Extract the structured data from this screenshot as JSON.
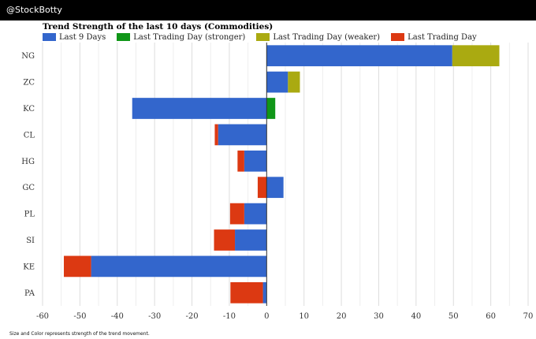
{
  "header": {
    "handle": "@StockBotty"
  },
  "colors": {
    "last9": "#3366cc",
    "stronger": "#109618",
    "weaker": "#aaaa11",
    "last": "#dc3912",
    "topbar": "#000000",
    "grid": "#dddddd"
  },
  "footnote": "Size and Color represents strength of the trend movement.",
  "chart_data": {
    "type": "bar",
    "orientation": "horizontal",
    "stacked": true,
    "title": "Trend Strength of the last 10 days (Commodities)",
    "legend_position": "top-left",
    "grid": true,
    "xlim": [
      -60,
      70
    ],
    "xticks": [
      -60,
      -50,
      -40,
      -30,
      -20,
      -10,
      0,
      10,
      20,
      30,
      40,
      50,
      60,
      70
    ],
    "categories": [
      "NG",
      "ZC",
      "KC",
      "CL",
      "HG",
      "GC",
      "PL",
      "SI",
      "KE",
      "PA"
    ],
    "series": [
      {
        "name": "Last 9 Days",
        "color": "#3366cc",
        "values": [
          49.7,
          5.7,
          -36,
          -13,
          -6,
          4.5,
          -6,
          -8.5,
          -47,
          -1
        ]
      },
      {
        "name": "Last Trading Day (stronger)",
        "color": "#109618",
        "values": [
          0,
          0,
          2.3,
          0,
          0,
          0,
          0,
          0,
          0,
          0
        ]
      },
      {
        "name": "Last Trading Day (weaker)",
        "color": "#aaaa11",
        "values": [
          12.6,
          3.2,
          0,
          0,
          0,
          0,
          0,
          0,
          0,
          0
        ]
      },
      {
        "name": "Last Trading Day",
        "color": "#dc3912",
        "values": [
          0,
          0,
          0,
          -0.9,
          -1.8,
          -2.4,
          -3.8,
          -5.6,
          -7.3,
          -8.7
        ]
      }
    ]
  }
}
